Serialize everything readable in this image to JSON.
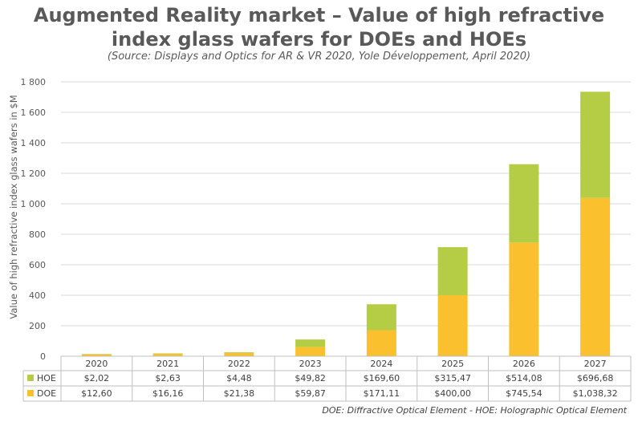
{
  "title_line1": "Augmented Reality market – Value of high refractive",
  "title_line2": "index glass wafers for DOEs and HOEs",
  "source": "(Source: Displays and Optics for AR & VR 2020, Yole Développement, April 2020)",
  "footnote": "DOE: Diffractive Optical Element - HOE: Holographic Optical Element",
  "chart_data": {
    "type": "bar",
    "stacked": true,
    "ylabel": "Value of high refractive index glass wafers in $M",
    "ylim": [
      0,
      1800
    ],
    "yticks": [
      0,
      200,
      400,
      600,
      800,
      1000,
      1200,
      1400,
      1600,
      1800
    ],
    "ytick_labels": [
      "0",
      "200",
      "400",
      "600",
      "800",
      "1 000",
      "1 200",
      "1 400",
      "1 600",
      "1 800"
    ],
    "grid": true,
    "categories": [
      "2020",
      "2021",
      "2022",
      "2023",
      "2024",
      "2025",
      "2026",
      "2027"
    ],
    "series": [
      {
        "name": "DOE",
        "color": "#fbc02d",
        "values": [
          12.6,
          16.16,
          21.38,
          59.87,
          171.11,
          400.0,
          745.54,
          1038.32
        ],
        "labels": [
          "$12,60",
          "$16,16",
          "$21,38",
          "$59,87",
          "$171,11",
          "$400,00",
          "$745,54",
          "$1,038,32"
        ]
      },
      {
        "name": "HOE",
        "color": "#b5cd45",
        "values": [
          2.02,
          2.63,
          4.48,
          49.82,
          169.6,
          315.47,
          514.08,
          696.68
        ],
        "labels": [
          "$2,02",
          "$2,63",
          "$4,48",
          "$49,82",
          "$169,60",
          "$315,47",
          "$514,08",
          "$696,68"
        ]
      }
    ],
    "table_order": [
      "HOE",
      "DOE"
    ]
  }
}
